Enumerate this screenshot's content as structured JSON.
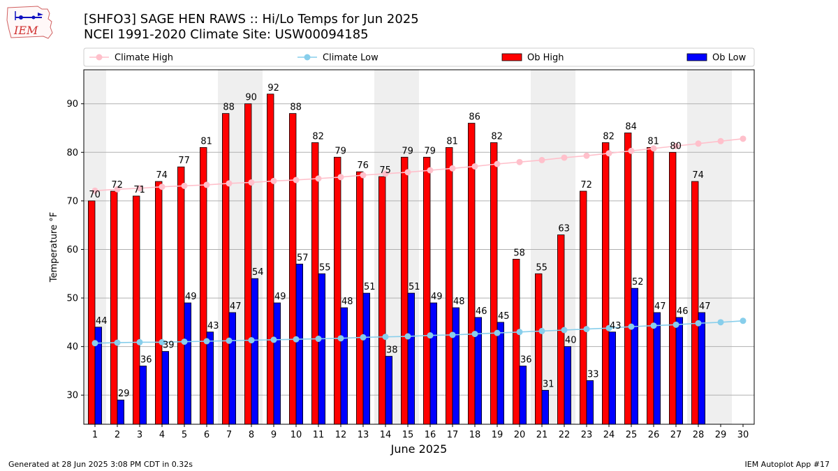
{
  "header": {
    "title_line1": "[SHFO3] SAGE HEN RAWS :: Hi/Lo Temps for Jun 2025",
    "title_line2": "NCEI 1991-2020 Climate Site: USW00094185",
    "logo_text": "IEM"
  },
  "footer": {
    "generated": "Generated at 28 Jun 2025 3:08 PM CDT in 0.32s",
    "app": "IEM Autoplot App #17"
  },
  "chart_data": {
    "type": "bar",
    "xlabel": "June 2025",
    "ylabel": "Temperature °F",
    "ylim": [
      24,
      97
    ],
    "yticks": [
      30,
      40,
      50,
      60,
      70,
      80,
      90
    ],
    "grid": true,
    "legend_position": "top",
    "categories": [
      "1",
      "2",
      "3",
      "4",
      "5",
      "6",
      "7",
      "8",
      "9",
      "10",
      "11",
      "12",
      "13",
      "14",
      "15",
      "16",
      "17",
      "18",
      "19",
      "20",
      "21",
      "22",
      "23",
      "24",
      "25",
      "26",
      "27",
      "28",
      "29",
      "30"
    ],
    "weekend_days": [
      1,
      7,
      8,
      14,
      15,
      21,
      22,
      28,
      29
    ],
    "series": [
      {
        "name": "Ob High",
        "kind": "bar",
        "color": "#ff0000",
        "values": [
          70,
          72,
          71,
          74,
          77,
          81,
          88,
          90,
          92,
          88,
          82,
          79,
          76,
          75,
          79,
          79,
          81,
          86,
          82,
          58,
          55,
          63,
          72,
          82,
          84,
          81,
          80,
          74,
          null,
          null
        ]
      },
      {
        "name": "Ob Low",
        "kind": "bar",
        "color": "#0000ff",
        "values": [
          44,
          29,
          36,
          39,
          49,
          43,
          47,
          54,
          49,
          57,
          55,
          48,
          51,
          38,
          51,
          49,
          48,
          46,
          45,
          36,
          31,
          40,
          33,
          43,
          52,
          47,
          46,
          47,
          null,
          null
        ]
      },
      {
        "name": "Climate High",
        "kind": "line",
        "color": "#ffc0cb",
        "values": [
          72.1,
          72.4,
          72.6,
          72.9,
          73.1,
          73.3,
          73.6,
          73.8,
          74.1,
          74.3,
          74.6,
          74.9,
          75.3,
          75.6,
          75.9,
          76.3,
          76.7,
          77.1,
          77.6,
          78.0,
          78.4,
          78.9,
          79.3,
          79.8,
          80.3,
          80.8,
          81.3,
          81.8,
          82.3,
          82.8
        ]
      },
      {
        "name": "Climate Low",
        "kind": "line",
        "color": "#87ceeb",
        "values": [
          40.7,
          40.8,
          40.9,
          40.9,
          41.0,
          41.1,
          41.2,
          41.3,
          41.4,
          41.5,
          41.6,
          41.7,
          41.9,
          42.0,
          42.1,
          42.3,
          42.4,
          42.6,
          42.8,
          43.0,
          43.2,
          43.4,
          43.6,
          43.8,
          44.1,
          44.3,
          44.5,
          44.8,
          45.0,
          45.3
        ]
      }
    ],
    "legend_order": [
      "Climate High",
      "Climate Low",
      "Ob High",
      "Ob Low"
    ],
    "weekend_color": "#efefef"
  }
}
